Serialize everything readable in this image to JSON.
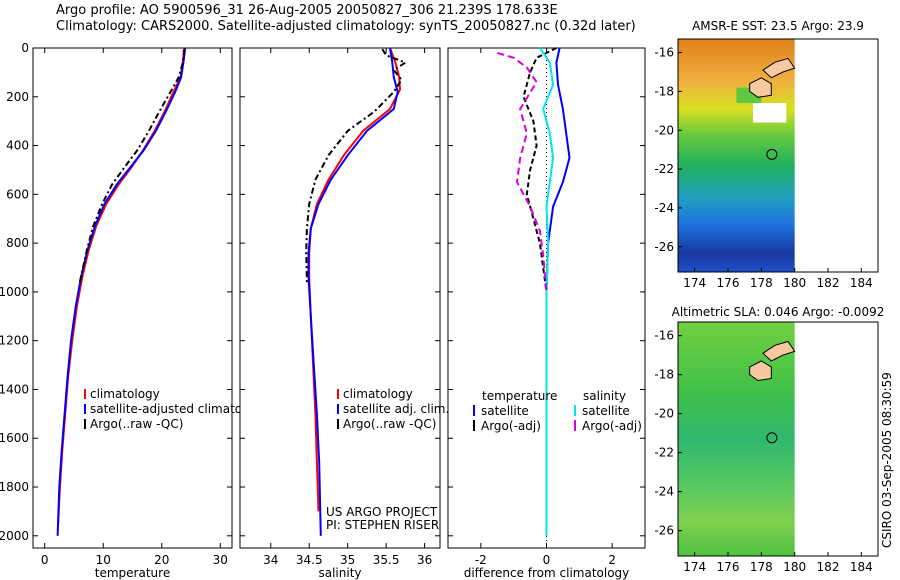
{
  "header": {
    "line1": "Argo profile: AO 5900596_31 26-Aug-2005 20050827_306 21.239S 178.633E",
    "line2": "Climatology: CARS2000. Satellite-adjusted climatology: synTS_20050827.nc (0.32d later)"
  },
  "chart_data": [
    {
      "type": "line",
      "xlabel": "temperature",
      "xlim": [
        -2,
        32
      ],
      "ylim": [
        0,
        2050
      ],
      "yreversed": true,
      "xticks": [
        0,
        10,
        20,
        30
      ],
      "yticks": [
        0,
        200,
        400,
        600,
        800,
        1000,
        1200,
        1400,
        1600,
        1800,
        2000
      ],
      "legend": [
        "climatology",
        "satellite-adjusted climatology",
        "Argo(..raw -QC)"
      ],
      "series": [
        {
          "name": "climatology",
          "color": "#ff0000",
          "dash": "",
          "points": [
            [
              23.8,
              0
            ],
            [
              23.6,
              60
            ],
            [
              23.2,
              120
            ],
            [
              22.0,
              180
            ],
            [
              20.5,
              260
            ],
            [
              18.8,
              340
            ],
            [
              16.8,
              420
            ],
            [
              14.8,
              490
            ],
            [
              12.6,
              560
            ],
            [
              10.5,
              640
            ],
            [
              8.8,
              730
            ],
            [
              7.5,
              830
            ],
            [
              6.4,
              940
            ],
            [
              5.5,
              1060
            ],
            [
              4.7,
              1200
            ],
            [
              4.0,
              1350
            ],
            [
              3.5,
              1500
            ],
            [
              3.0,
              1650
            ],
            [
              2.6,
              1800
            ],
            [
              2.3,
              1950
            ]
          ]
        },
        {
          "name": "satellite-adjusted climatology",
          "color": "#0000ff",
          "dash": "",
          "points": [
            [
              24.0,
              0
            ],
            [
              23.7,
              60
            ],
            [
              23.3,
              120
            ],
            [
              22.3,
              180
            ],
            [
              20.7,
              260
            ],
            [
              19.0,
              340
            ],
            [
              16.9,
              420
            ],
            [
              14.6,
              490
            ],
            [
              12.3,
              560
            ],
            [
              10.2,
              640
            ],
            [
              8.6,
              730
            ],
            [
              7.3,
              830
            ],
            [
              6.2,
              940
            ],
            [
              5.3,
              1060
            ],
            [
              4.5,
              1200
            ],
            [
              3.9,
              1350
            ],
            [
              3.4,
              1500
            ],
            [
              2.9,
              1650
            ],
            [
              2.5,
              1800
            ],
            [
              2.2,
              2000
            ]
          ]
        },
        {
          "name": "Argo(..raw -QC)",
          "color": "#000000",
          "dash": "6,3,2,3",
          "points": [
            [
              23.9,
              5
            ],
            [
              23.6,
              60
            ],
            [
              22.9,
              120
            ],
            [
              21.5,
              180
            ],
            [
              19.6,
              260
            ],
            [
              17.8,
              340
            ],
            [
              15.8,
              420
            ],
            [
              13.6,
              490
            ],
            [
              11.5,
              560
            ],
            [
              9.8,
              640
            ],
            [
              8.3,
              730
            ],
            [
              7.2,
              830
            ],
            [
              6.0,
              960
            ]
          ]
        }
      ]
    },
    {
      "type": "line",
      "xlabel": "salinity",
      "xlim": [
        33.6,
        36.2
      ],
      "ylim": [
        0,
        2050
      ],
      "yreversed": true,
      "xticks": [
        34,
        34.5,
        35,
        35.5,
        36
      ],
      "legend": [
        "climatology",
        "satellite adj. clim.",
        "Argo(..raw -QC)"
      ],
      "series": [
        {
          "name": "climatology",
          "color": "#ff0000",
          "dash": "",
          "points": [
            [
              35.55,
              0
            ],
            [
              35.62,
              60
            ],
            [
              35.67,
              120
            ],
            [
              35.68,
              170
            ],
            [
              35.55,
              250
            ],
            [
              35.2,
              340
            ],
            [
              34.95,
              440
            ],
            [
              34.75,
              540
            ],
            [
              34.6,
              640
            ],
            [
              34.52,
              740
            ],
            [
              34.5,
              840
            ],
            [
              34.5,
              940
            ],
            [
              34.52,
              1100
            ],
            [
              34.55,
              1300
            ],
            [
              34.58,
              1500
            ],
            [
              34.6,
              1700
            ],
            [
              34.62,
              1900
            ]
          ]
        },
        {
          "name": "satellite adj. clim.",
          "color": "#0000ff",
          "dash": "",
          "points": [
            [
              35.55,
              0
            ],
            [
              35.58,
              60
            ],
            [
              35.6,
              120
            ],
            [
              35.65,
              180
            ],
            [
              35.6,
              250
            ],
            [
              35.25,
              340
            ],
            [
              35.0,
              440
            ],
            [
              34.78,
              540
            ],
            [
              34.62,
              640
            ],
            [
              34.52,
              740
            ],
            [
              34.49,
              840
            ],
            [
              34.49,
              940
            ],
            [
              34.52,
              1100
            ],
            [
              34.56,
              1300
            ],
            [
              34.6,
              1500
            ],
            [
              34.63,
              1700
            ],
            [
              34.65,
              2000
            ]
          ]
        },
        {
          "name": "Argo(..raw -QC)",
          "color": "#000000",
          "dash": "6,3,2,3",
          "points": [
            [
              35.45,
              5
            ],
            [
              35.5,
              30
            ],
            [
              35.75,
              60
            ],
            [
              35.6,
              90
            ],
            [
              35.7,
              130
            ],
            [
              35.6,
              180
            ],
            [
              35.35,
              260
            ],
            [
              35.0,
              340
            ],
            [
              34.75,
              440
            ],
            [
              34.58,
              540
            ],
            [
              34.5,
              640
            ],
            [
              34.47,
              740
            ],
            [
              34.46,
              840
            ],
            [
              34.47,
              960
            ]
          ]
        }
      ],
      "annotation": [
        "US ARGO PROJECT",
        "PI: STEPHEN RISER"
      ]
    },
    {
      "type": "line",
      "xlabel": "difference from climatology",
      "xlim": [
        -3,
        3
      ],
      "ylim": [
        0,
        2050
      ],
      "yreversed": true,
      "xticks": [
        -2,
        0,
        2
      ],
      "legend_groups": [
        {
          "title": "temperature",
          "items": [
            "satellite",
            "Argo(-adj)"
          ]
        },
        {
          "title": "salinity",
          "items": [
            "satellite",
            "Argo(-adj)"
          ]
        }
      ],
      "series": [
        {
          "name": "temperature satellite",
          "color": "#0000ff",
          "dash": "",
          "points": [
            [
              0.4,
              0
            ],
            [
              0.3,
              60
            ],
            [
              0.35,
              150
            ],
            [
              0.5,
              250
            ],
            [
              0.6,
              350
            ],
            [
              0.7,
              450
            ],
            [
              0.5,
              550
            ],
            [
              0.2,
              650
            ],
            [
              0.05,
              800
            ],
            [
              0.0,
              1000
            ],
            [
              0.0,
              1300
            ],
            [
              0.0,
              1700
            ],
            [
              0.0,
              2000
            ]
          ]
        },
        {
          "name": "temperature Argo(-adj)",
          "color": "#000000",
          "dash": "5,3",
          "points": [
            [
              0.3,
              0
            ],
            [
              -0.3,
              40
            ],
            [
              -0.5,
              100
            ],
            [
              -0.7,
              200
            ],
            [
              -0.4,
              300
            ],
            [
              -0.3,
              400
            ],
            [
              -0.5,
              500
            ],
            [
              -0.6,
              600
            ],
            [
              -0.4,
              700
            ],
            [
              -0.2,
              800
            ],
            [
              -0.1,
              900
            ],
            [
              0.0,
              1000
            ]
          ]
        },
        {
          "name": "salinity satellite",
          "color": "#00e5ee",
          "dash": "",
          "points": [
            [
              -0.2,
              0
            ],
            [
              0.1,
              60
            ],
            [
              0.2,
              150
            ],
            [
              -0.1,
              250
            ],
            [
              0.1,
              350
            ],
            [
              0.2,
              450
            ],
            [
              0.1,
              550
            ],
            [
              0.0,
              650
            ],
            [
              0.05,
              800
            ],
            [
              0.0,
              1000
            ],
            [
              0.0,
              1300
            ],
            [
              0.0,
              1700
            ],
            [
              0.0,
              2000
            ]
          ]
        },
        {
          "name": "salinity Argo(-adj)",
          "color": "#dd00dd",
          "dash": "7,4",
          "points": [
            [
              -1.5,
              20
            ],
            [
              -1.0,
              40
            ],
            [
              -0.6,
              80
            ],
            [
              -0.3,
              140
            ],
            [
              -0.8,
              250
            ],
            [
              -0.6,
              350
            ],
            [
              -0.8,
              450
            ],
            [
              -0.9,
              550
            ],
            [
              -0.5,
              650
            ],
            [
              -0.2,
              750
            ],
            [
              -0.1,
              850
            ],
            [
              0.0,
              1000
            ]
          ]
        }
      ]
    },
    {
      "type": "heatmap",
      "title": "AMSR-E SST: 23.5 Argo: 23.9",
      "xticks": [
        174,
        176,
        178,
        180,
        182,
        184
      ],
      "yticks": [
        -16,
        -18,
        -20,
        -22,
        -24,
        -26
      ],
      "xlim": [
        173,
        185
      ],
      "ylim": [
        -27.3,
        -15.3
      ],
      "marker": {
        "lon": 178.633,
        "lat": -21.239
      }
    },
    {
      "type": "heatmap",
      "title": "Altimetric SLA: 0.046 Argo: -0.0092",
      "xticks": [
        174,
        176,
        178,
        180,
        182,
        184
      ],
      "yticks": [
        -16,
        -18,
        -20,
        -22,
        -24,
        -26
      ],
      "xlim": [
        173,
        185
      ],
      "ylim": [
        -27.3,
        -15.3
      ],
      "marker": {
        "lon": 178.633,
        "lat": -21.239
      }
    }
  ],
  "footer": {
    "credit": "CSIRO 03-Sep-2005 08:30:59"
  }
}
